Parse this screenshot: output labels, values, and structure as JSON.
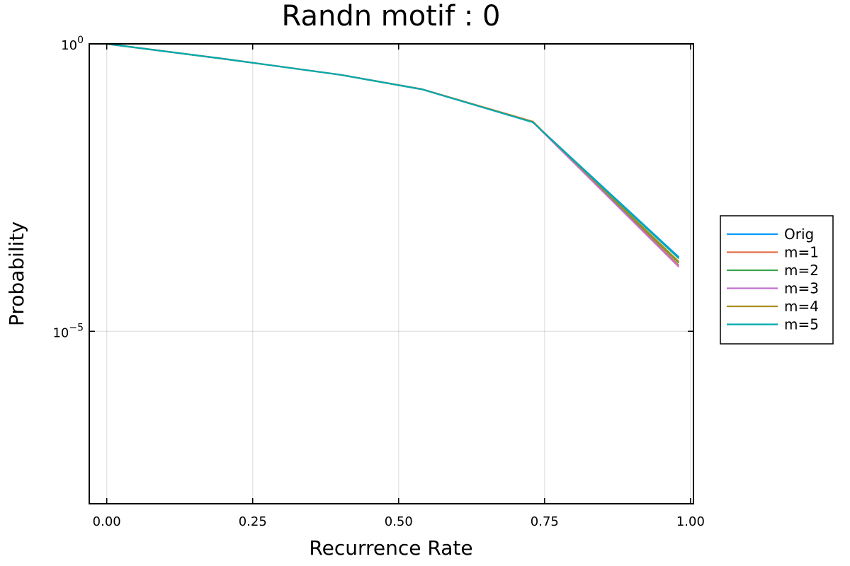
{
  "chart_data": {
    "type": "line",
    "title": "Randn motif : 0",
    "xlabel": "Recurrence Rate",
    "ylabel": "Probability",
    "xlim": [
      -0.03,
      1.005
    ],
    "ylim_log10": [
      -8.0,
      0.0
    ],
    "yscale": "log10",
    "x_ticks": [
      0.0,
      0.25,
      0.5,
      0.75,
      1.0
    ],
    "x_tick_labels": [
      "0.00",
      "0.25",
      "0.50",
      "0.75",
      "1.00"
    ],
    "y_ticks": [
      {
        "value_log10": 0,
        "base": "10",
        "exp": "0"
      },
      {
        "value_log10": -5,
        "base": "10",
        "exp": "−5"
      }
    ],
    "grid": true,
    "legend_position": "outside-right",
    "x": [
      0.0,
      0.2,
      0.4,
      0.54,
      0.73,
      0.98
    ],
    "series": [
      {
        "name": "Orig",
        "color": "#009AFA",
        "y": [
          1.0,
          0.55,
          0.29,
          0.162,
          0.0432,
          0.000195
        ]
      },
      {
        "name": "m=1",
        "color": "#E36F47",
        "y": [
          1.0,
          0.55,
          0.29,
          0.163,
          0.0445,
          0.00014
        ]
      },
      {
        "name": "m=2",
        "color": "#3EA44E",
        "y": [
          1.0,
          0.55,
          0.29,
          0.162,
          0.0436,
          0.000155
        ]
      },
      {
        "name": "m=3",
        "color": "#C371D2",
        "y": [
          1.0,
          0.55,
          0.29,
          0.162,
          0.0434,
          0.000132
        ]
      },
      {
        "name": "m=4",
        "color": "#AC8E18",
        "y": [
          1.0,
          0.55,
          0.29,
          0.162,
          0.044,
          0.000162
        ]
      },
      {
        "name": "m=5",
        "color": "#00AAAE",
        "y": [
          1.0,
          0.55,
          0.29,
          0.162,
          0.0432,
          0.000185
        ]
      }
    ]
  }
}
